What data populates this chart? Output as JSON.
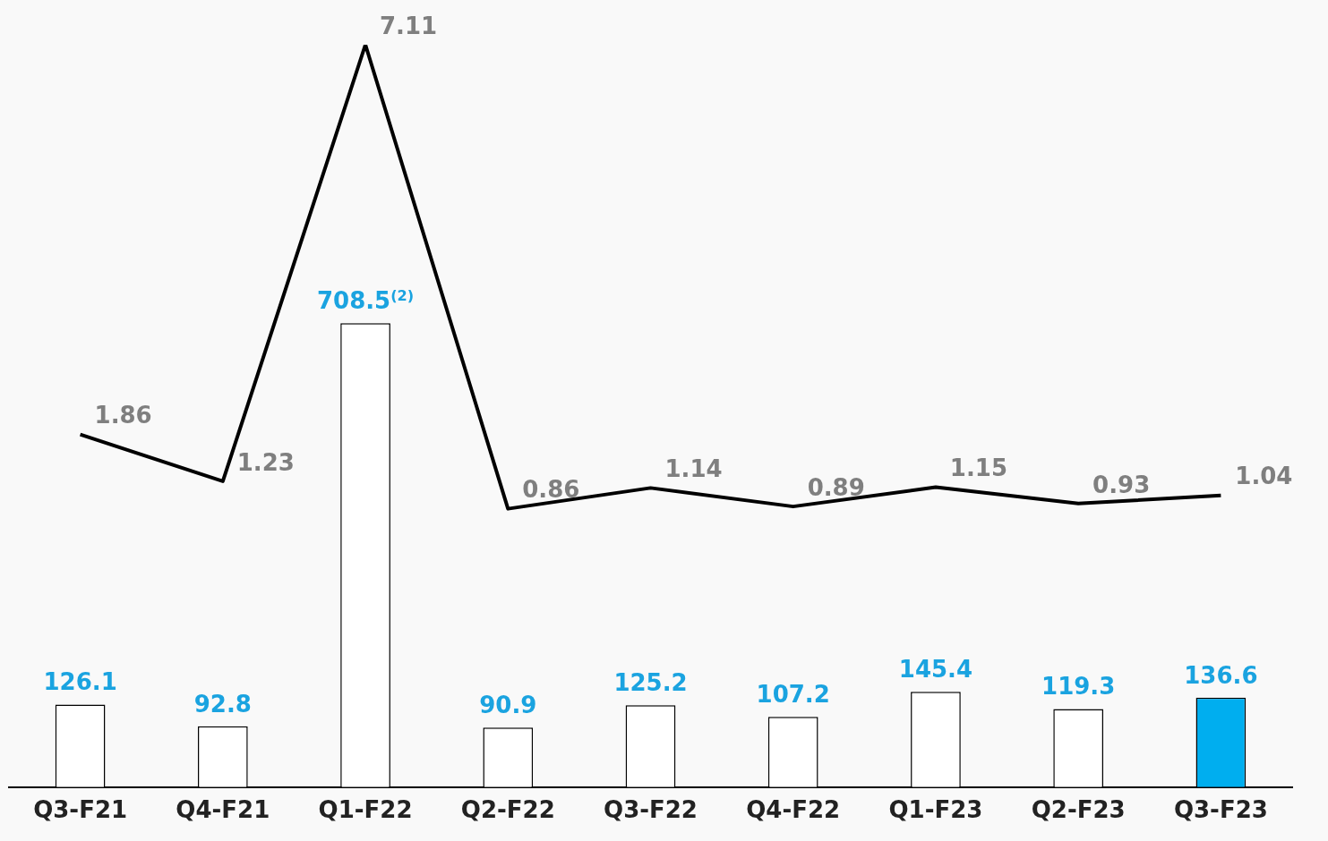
{
  "chart_data": {
    "type": "bar",
    "categories": [
      "Q3-F21",
      "Q4-F21",
      "Q1-F22",
      "Q2-F22",
      "Q3-F22",
      "Q4-F22",
      "Q1-F23",
      "Q2-F23",
      "Q3-F23"
    ],
    "series": [
      {
        "colors": [
          "#ffffff",
          "#ffffff",
          "#ffffff",
          "#ffffff",
          "#ffffff",
          "#ffffff",
          "#ffffff",
          "#ffffff",
          "#00aeef"
        ],
        "values": [
          126.1,
          92.8,
          708.5,
          90.9,
          125.2,
          107.2,
          145.4,
          119.3,
          136.6
        ],
        "value_labels": [
          "126.1",
          "92.8",
          "708.5$^{(2)}$",
          "90.9",
          "125.2",
          "107.2",
          "145.4",
          "119.3",
          "136.6"
        ]
      },
      {
        "type": "line",
        "axis": "y2",
        "color": "#000000",
        "values": [
          1.86,
          1.23,
          7.11,
          0.86,
          1.14,
          0.89,
          1.15,
          0.93,
          1.04
        ]
      }
    ],
    "data_labels": true,
    "grid": false,
    "legend": false,
    "marker": "none"
  }
}
